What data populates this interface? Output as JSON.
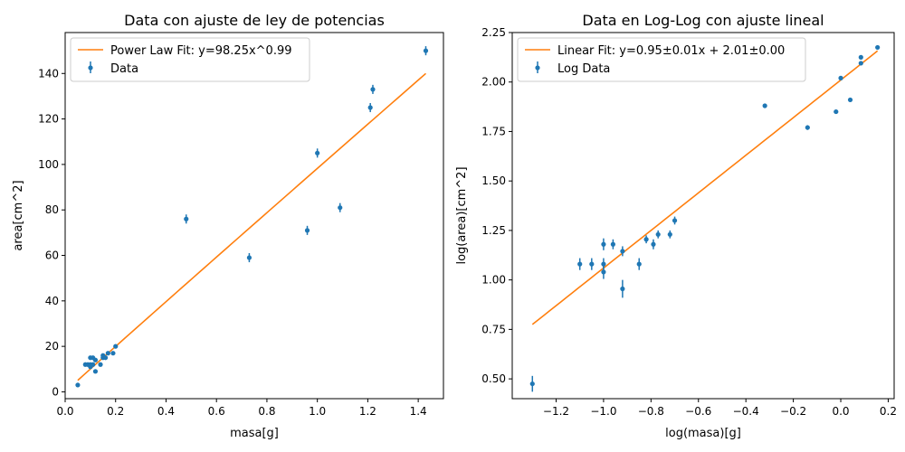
{
  "chart_data": [
    {
      "type": "scatter",
      "title": "Data con ajuste de ley de potencias",
      "xlabel": "masa[g]",
      "ylabel": "area[cm^2]",
      "xlim": [
        0.0,
        1.5
      ],
      "ylim": [
        -3,
        158
      ],
      "xticks": [
        "0.0",
        "0.2",
        "0.4",
        "0.6",
        "0.8",
        "1.0",
        "1.2",
        "1.4"
      ],
      "yticks": [
        "0",
        "20",
        "40",
        "60",
        "80",
        "100",
        "120",
        "140"
      ],
      "legend_position": "upper-left",
      "legend": [
        "Power Law Fit: y=98.25x^0.99",
        "Data"
      ],
      "colors": {
        "data": "#1f77b4",
        "fit": "#ff7f0e"
      },
      "series": [
        {
          "name": "Data",
          "kind": "errorbar",
          "points": [
            {
              "x": 0.05,
              "y": 3,
              "err": 0.8
            },
            {
              "x": 0.08,
              "y": 12,
              "err": 0.8
            },
            {
              "x": 0.09,
              "y": 12,
              "err": 0.8
            },
            {
              "x": 0.1,
              "y": 12,
              "err": 0.8
            },
            {
              "x": 0.1,
              "y": 11,
              "err": 0.8
            },
            {
              "x": 0.1,
              "y": 15,
              "err": 0.8
            },
            {
              "x": 0.11,
              "y": 12,
              "err": 0.8
            },
            {
              "x": 0.11,
              "y": 15,
              "err": 0.8
            },
            {
              "x": 0.12,
              "y": 14,
              "err": 0.8
            },
            {
              "x": 0.12,
              "y": 9,
              "err": 0.8
            },
            {
              "x": 0.14,
              "y": 12,
              "err": 0.8
            },
            {
              "x": 0.15,
              "y": 15,
              "err": 0.8
            },
            {
              "x": 0.15,
              "y": 16,
              "err": 0.8
            },
            {
              "x": 0.16,
              "y": 15,
              "err": 0.8
            },
            {
              "x": 0.17,
              "y": 17,
              "err": 0.8
            },
            {
              "x": 0.19,
              "y": 17,
              "err": 0.8
            },
            {
              "x": 0.2,
              "y": 20,
              "err": 0.8
            },
            {
              "x": 0.48,
              "y": 76,
              "err": 2
            },
            {
              "x": 0.73,
              "y": 59,
              "err": 2
            },
            {
              "x": 0.96,
              "y": 71,
              "err": 2
            },
            {
              "x": 1.0,
              "y": 105,
              "err": 2
            },
            {
              "x": 1.09,
              "y": 81,
              "err": 2
            },
            {
              "x": 1.21,
              "y": 125,
              "err": 2
            },
            {
              "x": 1.22,
              "y": 133,
              "err": 2
            },
            {
              "x": 1.43,
              "y": 150,
              "err": 2
            }
          ]
        },
        {
          "name": "Power Law Fit: y=98.25x^0.99",
          "kind": "fit",
          "a": 98.25,
          "b": 0.99,
          "x_range": [
            0.05,
            1.43
          ]
        }
      ]
    },
    {
      "type": "scatter",
      "title": "Data en Log-Log con ajuste lineal",
      "xlabel": "log(masa)[g]",
      "ylabel": "log(area)[cm^2]",
      "xlim": [
        -1.385,
        0.225
      ],
      "ylim": [
        0.4,
        2.25
      ],
      "xticks": [
        "−1.2",
        "−1.0",
        "−0.8",
        "−0.6",
        "−0.4",
        "−0.2",
        "0.0",
        "0.2"
      ],
      "yticks": [
        "0.50",
        "0.75",
        "1.00",
        "1.25",
        "1.50",
        "1.75",
        "2.00",
        "2.25"
      ],
      "legend_position": "upper-left",
      "legend": [
        "Linear Fit: y=0.95±0.01x + 2.01±0.00",
        "Log Data"
      ],
      "colors": {
        "data": "#1f77b4",
        "fit": "#ff7f0e"
      },
      "series": [
        {
          "name": "Log Data",
          "kind": "errorbar",
          "points": [
            {
              "x": -1.3,
              "y": 0.475,
              "err": 0.04
            },
            {
              "x": -1.1,
              "y": 1.08,
              "err": 0.03
            },
            {
              "x": -1.05,
              "y": 1.08,
              "err": 0.03
            },
            {
              "x": -1.0,
              "y": 1.18,
              "err": 0.03
            },
            {
              "x": -1.0,
              "y": 1.08,
              "err": 0.03
            },
            {
              "x": -1.0,
              "y": 1.04,
              "err": 0.035
            },
            {
              "x": -0.96,
              "y": 1.18,
              "err": 0.025
            },
            {
              "x": -0.92,
              "y": 1.145,
              "err": 0.025
            },
            {
              "x": -0.92,
              "y": 0.955,
              "err": 0.045
            },
            {
              "x": -0.85,
              "y": 1.08,
              "err": 0.03
            },
            {
              "x": -0.82,
              "y": 1.205,
              "err": 0.02
            },
            {
              "x": -0.79,
              "y": 1.18,
              "err": 0.025
            },
            {
              "x": -0.77,
              "y": 1.23,
              "err": 0.02
            },
            {
              "x": -0.72,
              "y": 1.23,
              "err": 0.02
            },
            {
              "x": -0.7,
              "y": 1.3,
              "err": 0.02
            },
            {
              "x": -0.32,
              "y": 1.88,
              "err": 0.01
            },
            {
              "x": -0.14,
              "y": 1.77,
              "err": 0.012
            },
            {
              "x": -0.02,
              "y": 1.85,
              "err": 0.01
            },
            {
              "x": 0.0,
              "y": 2.02,
              "err": 0.008
            },
            {
              "x": 0.04,
              "y": 1.91,
              "err": 0.01
            },
            {
              "x": 0.085,
              "y": 2.095,
              "err": 0.008
            },
            {
              "x": 0.085,
              "y": 2.125,
              "err": 0.007
            },
            {
              "x": 0.155,
              "y": 2.175,
              "err": 0.006
            }
          ]
        },
        {
          "name": "Linear Fit: y=0.95±0.01x + 2.01±0.00",
          "kind": "linear",
          "m": 0.95,
          "c": 2.01,
          "x_range": [
            -1.3,
            0.155
          ]
        }
      ]
    }
  ]
}
